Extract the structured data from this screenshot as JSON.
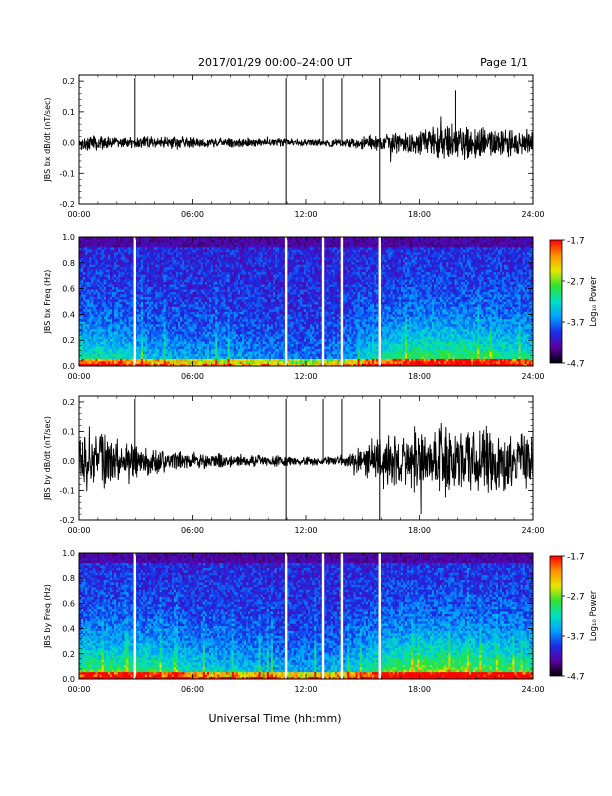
{
  "header": {
    "title": "2017/01/29   00:00–24:00 UT",
    "page": "Page 1/1"
  },
  "footer": {
    "xlabel": "Universal Time (hh:mm)"
  },
  "chart_data": [
    {
      "type": "line",
      "ylabel": "JBS bx dB/dt (nT/sec)",
      "x_ticks": [
        "00:00",
        "06:00",
        "12:00",
        "18:00",
        "24:00"
      ],
      "xlim": [
        0,
        24
      ],
      "ylim": [
        -0.2,
        0.22
      ],
      "y_ticks": [
        "-0.2",
        "-0.1",
        "0.0",
        "0.1",
        "0.2"
      ],
      "y_tick_values": [
        -0.2,
        -0.1,
        0.0,
        0.1,
        0.2
      ],
      "color": "#000000",
      "series": [
        {
          "x": [
            0,
            1,
            2,
            3,
            4,
            5,
            6,
            7,
            8,
            9,
            10,
            11,
            12,
            13,
            14,
            15,
            16,
            17,
            18,
            19,
            20,
            21,
            22,
            23,
            24
          ],
          "y": [
            0.02,
            0.02,
            0.015,
            0.02,
            0.015,
            0.02,
            0.015,
            0.012,
            0.015,
            0.012,
            0.01,
            0.012,
            0.01,
            0.01,
            0.012,
            0.018,
            0.025,
            0.03,
            0.04,
            0.045,
            0.05,
            0.045,
            0.04,
            0.035,
            0.03
          ]
        }
      ],
      "spikes": [
        {
          "x": 2.95,
          "y": 0.21
        },
        {
          "x": 10.95,
          "y": 0.21
        },
        {
          "x": 12.9,
          "y": 0.21
        },
        {
          "x": 13.9,
          "y": 0.21
        },
        {
          "x": 15.9,
          "y": 0.21
        },
        {
          "x": 10.95,
          "y": -0.2
        },
        {
          "x": 15.9,
          "y": -0.2
        }
      ],
      "peak": {
        "x": 19.9,
        "y": 0.17
      },
      "noise_seed": 17
    },
    {
      "type": "heatmap",
      "ylabel": "JBS bx Freq (Hz)",
      "x_ticks": [
        "00:00",
        "06:00",
        "12:00",
        "18:00",
        "24:00"
      ],
      "xlim": [
        0,
        24
      ],
      "ylim": [
        0,
        1.0
      ],
      "y_ticks": [
        "0.0",
        "0.2",
        "0.4",
        "0.6",
        "0.8",
        "1.0"
      ],
      "y_tick_values": [
        0,
        0.2,
        0.4,
        0.6,
        0.8,
        1.0
      ],
      "gaps_hours": [
        2.95,
        10.95,
        12.9,
        13.9,
        15.9
      ],
      "activity_profile": {
        "x": [
          0,
          2,
          4,
          6,
          8,
          10,
          12,
          14,
          16,
          18,
          20,
          22,
          24
        ],
        "level": [
          0.45,
          0.4,
          0.3,
          0.25,
          0.25,
          0.2,
          0.15,
          0.2,
          0.45,
          0.55,
          0.55,
          0.5,
          0.45
        ]
      },
      "colorbar": {
        "label": "Log₁₀ Power",
        "ticks": [
          "-1.7",
          "-2.7",
          "-3.7",
          "-4.7"
        ],
        "tick_values": [
          -1.7,
          -2.7,
          -3.7,
          -4.7
        ],
        "range": [
          -4.7,
          -1.7
        ],
        "colormap": [
          "#000000",
          "#5a00a0",
          "#1a2ce8",
          "#00a0ff",
          "#00e0c0",
          "#30e030",
          "#e8e800",
          "#ff9000",
          "#ff0000"
        ]
      },
      "noise_seed": 41
    },
    {
      "type": "line",
      "ylabel": "JBS by dB/dt (nT/sec)",
      "x_ticks": [
        "00:00",
        "06:00",
        "12:00",
        "18:00",
        "24:00"
      ],
      "xlim": [
        0,
        24
      ],
      "ylim": [
        -0.2,
        0.22
      ],
      "y_ticks": [
        "-0.2",
        "-0.1",
        "0.0",
        "0.1",
        "0.2"
      ],
      "y_tick_values": [
        -0.2,
        -0.1,
        0.0,
        0.1,
        0.2
      ],
      "color": "#000000",
      "series": [
        {
          "x": [
            0,
            1,
            2,
            3,
            4,
            5,
            6,
            7,
            8,
            9,
            10,
            11,
            12,
            13,
            14,
            15,
            16,
            17,
            18,
            19,
            20,
            21,
            22,
            23,
            24
          ],
          "y": [
            0.09,
            0.08,
            0.06,
            0.05,
            0.035,
            0.03,
            0.025,
            0.02,
            0.02,
            0.015,
            0.015,
            0.015,
            0.012,
            0.012,
            0.015,
            0.04,
            0.07,
            0.08,
            0.09,
            0.1,
            0.1,
            0.09,
            0.09,
            0.08,
            0.07
          ]
        }
      ],
      "spikes": [
        {
          "x": 2.95,
          "y": 0.21
        },
        {
          "x": 10.95,
          "y": 0.21
        },
        {
          "x": 12.9,
          "y": 0.21
        },
        {
          "x": 13.9,
          "y": 0.21
        },
        {
          "x": 15.9,
          "y": 0.21
        },
        {
          "x": 10.95,
          "y": -0.2
        },
        {
          "x": 15.9,
          "y": -0.2
        }
      ],
      "noise_seed": 73
    },
    {
      "type": "heatmap",
      "ylabel": "JBS by Freq (Hz)",
      "x_ticks": [
        "00:00",
        "06:00",
        "12:00",
        "18:00",
        "24:00"
      ],
      "xlim": [
        0,
        24
      ],
      "ylim": [
        0,
        1.0
      ],
      "y_ticks": [
        "0.0",
        "0.2",
        "0.4",
        "0.6",
        "0.8",
        "1.0"
      ],
      "y_tick_values": [
        0,
        0.2,
        0.4,
        0.6,
        0.8,
        1.0
      ],
      "gaps_hours": [
        2.95,
        10.95,
        12.9,
        13.9,
        15.9
      ],
      "activity_profile": {
        "x": [
          0,
          2,
          4,
          6,
          8,
          10,
          12,
          14,
          16,
          18,
          20,
          22,
          24
        ],
        "level": [
          0.55,
          0.55,
          0.5,
          0.4,
          0.35,
          0.3,
          0.25,
          0.3,
          0.55,
          0.65,
          0.65,
          0.6,
          0.55
        ]
      },
      "colorbar": {
        "label": "Log₁₀ Power",
        "ticks": [
          "-1.7",
          "-2.7",
          "-3.7",
          "-4.7"
        ],
        "tick_values": [
          -1.7,
          -2.7,
          -3.7,
          -4.7
        ],
        "range": [
          -4.7,
          -1.7
        ],
        "colormap": [
          "#000000",
          "#5a00a0",
          "#1a2ce8",
          "#00a0ff",
          "#00e0c0",
          "#30e030",
          "#e8e800",
          "#ff9000",
          "#ff0000"
        ]
      },
      "noise_seed": 97
    }
  ]
}
